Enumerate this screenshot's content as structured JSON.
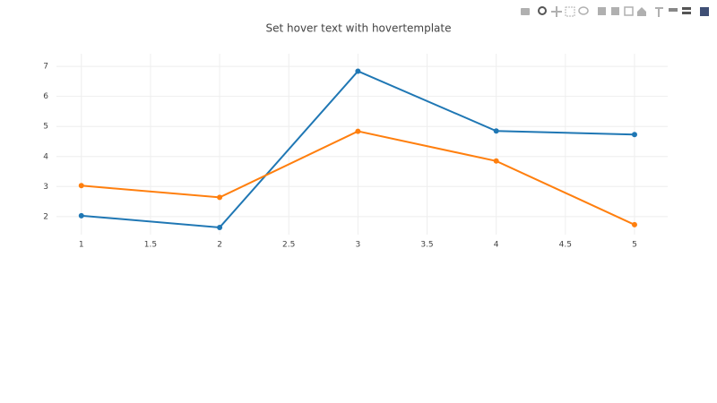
{
  "chart_data": {
    "type": "line",
    "title": "Set hover text with hovertemplate",
    "x": [
      1,
      2,
      3,
      4,
      5
    ],
    "series": [
      {
        "color": "#1f77b4",
        "values": [
          2.03,
          1.64,
          6.84,
          4.85,
          4.73
        ]
      },
      {
        "color": "#ff7f0e",
        "values": [
          3.03,
          2.64,
          4.84,
          3.85,
          1.73
        ]
      }
    ],
    "xlim": [
      0.82,
      5.24
    ],
    "ylim": [
      1.4,
      7.42
    ],
    "xticks": [
      1,
      1.5,
      2,
      2.5,
      3,
      3.5,
      4,
      4.5,
      5
    ],
    "yticks": [
      2,
      3,
      4,
      5,
      6,
      7
    ],
    "grid": true
  }
}
